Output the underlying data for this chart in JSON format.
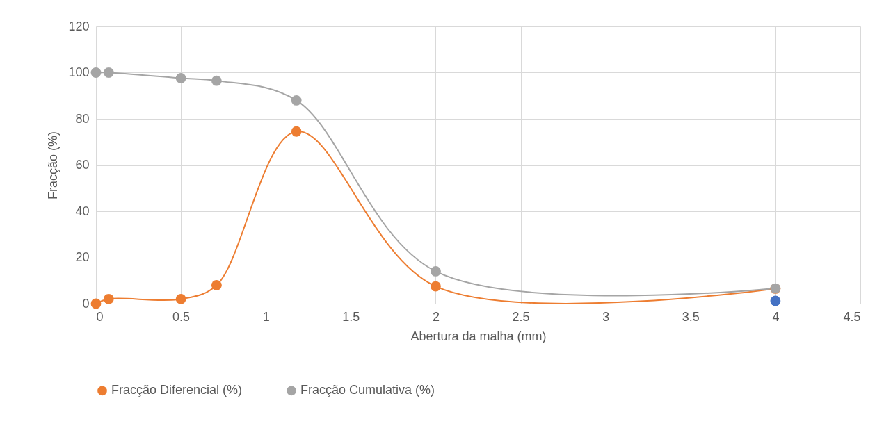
{
  "chart_data": {
    "type": "line",
    "xlabel": "Abertura da malha (mm)",
    "ylabel": "Fracção (%)",
    "x": [
      0,
      0.075,
      0.5,
      0.71,
      1.18,
      2,
      4
    ],
    "series": [
      {
        "name": "Fracção Diferencial (%)",
        "color": "#ed7d31",
        "values": [
          0,
          2,
          2,
          8,
          74.5,
          7.5,
          6.5
        ]
      },
      {
        "name": "Fracção Cumulativa (%)",
        "color": "#a5a5a5",
        "values": [
          100,
          100,
          97.6,
          96.5,
          88,
          14,
          6.6
        ]
      },
      {
        "type": "scatter",
        "color": "#4472c4",
        "x": [
          4
        ],
        "values": [
          1.2
        ]
      }
    ],
    "xlim": [
      0,
      4.5
    ],
    "xticks": [
      0,
      0.5,
      1,
      1.5,
      2,
      2.5,
      3,
      3.5,
      4,
      4.5
    ],
    "ylim": [
      0,
      120
    ],
    "yticks": [
      0,
      20,
      40,
      60,
      80,
      100,
      120
    ],
    "grid": true,
    "legend": "bottom",
    "marker": "circle",
    "line_style": "solid"
  }
}
